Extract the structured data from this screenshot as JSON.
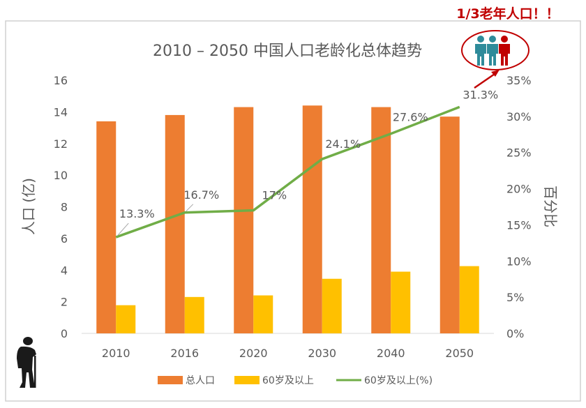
{
  "callout": "1/3老年人口！！",
  "chart_data": {
    "type": "bar",
    "title": "2010 – 2050 中国人口老龄化总体趋势",
    "categories": [
      "2010",
      "2016",
      "2020",
      "2030",
      "2040",
      "2050"
    ],
    "ylabel": "人口 (亿)",
    "ylim": [
      0,
      16
    ],
    "yticks": [
      "0",
      "2",
      "4",
      "6",
      "8",
      "10",
      "12",
      "14",
      "16"
    ],
    "y2label": "百分比",
    "y2lim": [
      0,
      35
    ],
    "y2ticks": [
      "0%",
      "5%",
      "10%",
      "15%",
      "20%",
      "25%",
      "30%",
      "35%"
    ],
    "series": [
      {
        "name": "总人口",
        "type": "bar",
        "axis": "left",
        "color": "#ED7D31",
        "values": [
          13.4,
          13.8,
          14.3,
          14.4,
          14.3,
          13.7
        ]
      },
      {
        "name": "60岁及以上",
        "type": "bar",
        "axis": "left",
        "color": "#FFC000",
        "values": [
          1.78,
          2.3,
          2.4,
          3.45,
          3.9,
          4.25
        ]
      },
      {
        "name": "60岁及以上(%)",
        "type": "line",
        "axis": "right",
        "color": "#70AD47",
        "values": [
          13.3,
          16.7,
          17,
          24.1,
          27.6,
          31.3
        ],
        "labels": [
          "13.3%",
          "16.7%",
          "17%",
          "24.1%",
          "27.6%",
          "31.3%"
        ]
      }
    ],
    "legend_position": "bottom",
    "grid": false
  },
  "colors": {
    "callout_red": "#C00000",
    "person_teal": "#2E8B9A",
    "person_red": "#C00000",
    "axis_text": "#595959",
    "title_text": "#595959"
  }
}
